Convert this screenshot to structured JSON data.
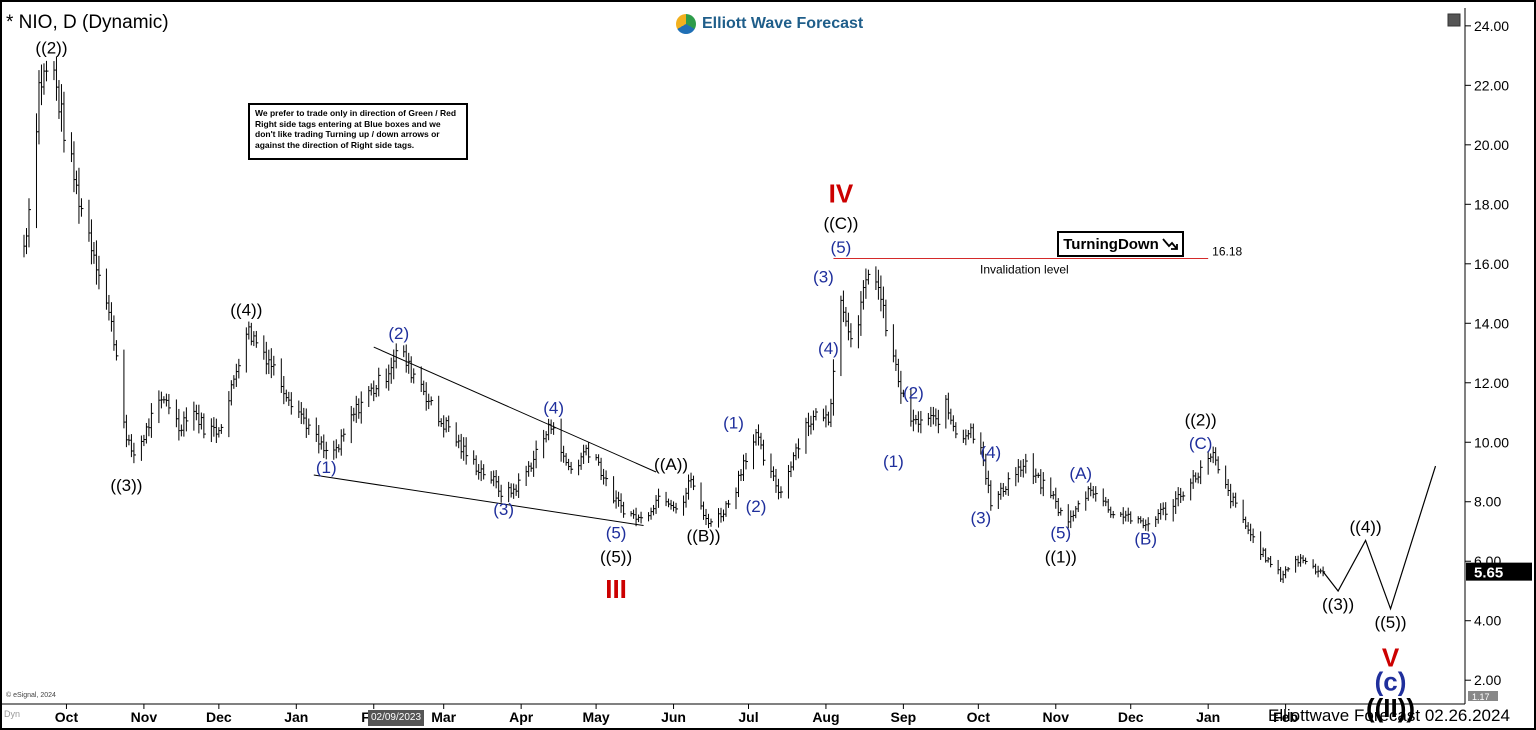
{
  "header": {
    "title": "* NIO, D (Dynamic)",
    "brand": "Elliott Wave Forecast"
  },
  "note": "We prefer to trade only in direction of Green / Red Right side tags entering at Blue boxes and we don't like trading Turning up / down arrows or against the direction of Right side tags.",
  "tag": {
    "label": "TurningDown",
    "icon": "arrow-down-right-icon",
    "level": "16.18",
    "caption": "Invalidation level"
  },
  "footer": {
    "copyright": "© eSignal, 2024",
    "brand_date": "Elliottwave Forecast 02.26.2024",
    "date_flag": "02/09/2023",
    "dyn": "Dyn"
  },
  "chart_data": {
    "type": "line",
    "subtype": "ohlc-daily-with-elliott-wave-labels",
    "y_axis": {
      "position": "right",
      "ylim": [
        1.2,
        24.6
      ],
      "ticks": [
        2,
        4,
        6,
        8,
        10,
        12,
        14,
        16,
        18,
        20,
        22,
        24
      ],
      "tick_labels": [
        "2.00",
        "4.00",
        "6.00",
        "8.00",
        "10.00",
        "12.00",
        "14.00",
        "16.00",
        "18.00",
        "20.00",
        "22.00",
        "24.00"
      ],
      "last_price_label": "5.65",
      "last_price": 5.65,
      "bottom_label": "1.17"
    },
    "x_axis": {
      "months": [
        "Oct",
        "Nov",
        "Dec",
        "Jan",
        "Feb",
        "Mar",
        "Apr",
        "May",
        "Jun",
        "Jul",
        "Aug",
        "Sep",
        "Oct",
        "Nov",
        "Dec",
        "Jan",
        "Feb"
      ],
      "month_start_dates": [
        "2022-10-01",
        "2022-11-01",
        "2022-12-01",
        "2023-01-01",
        "2023-02-01",
        "2023-03-01",
        "2023-04-01",
        "2023-05-01",
        "2023-06-01",
        "2023-07-01",
        "2023-08-01",
        "2023-09-01",
        "2023-10-01",
        "2023-11-01",
        "2023-12-01",
        "2024-01-01",
        "2024-02-01"
      ]
    },
    "grid": false,
    "series": [
      {
        "type": "price",
        "x": [
          "2022-09-14",
          "2022-09-17",
          "2022-09-20",
          "2022-09-25",
          "2022-09-30",
          "2022-10-05",
          "2022-10-10",
          "2022-10-15",
          "2022-10-20",
          "2022-10-23",
          "2022-10-25",
          "2022-10-28",
          "2022-11-01",
          "2022-11-05",
          "2022-11-10",
          "2022-11-15",
          "2022-11-20",
          "2022-11-25",
          "2022-11-30",
          "2022-12-04",
          "2022-12-08",
          "2022-12-12",
          "2022-12-16",
          "2022-12-21",
          "2022-12-26",
          "2022-12-31",
          "2023-01-04",
          "2023-01-08",
          "2023-01-13",
          "2023-01-18",
          "2023-01-23",
          "2023-01-28",
          "2023-02-01",
          "2023-02-06",
          "2023-02-11",
          "2023-02-15",
          "2023-02-20",
          "2023-02-26",
          "2023-03-03",
          "2023-03-08",
          "2023-03-14",
          "2023-03-20",
          "2023-03-25",
          "2023-03-29",
          "2023-04-01",
          "2023-04-05",
          "2023-04-09",
          "2023-04-14",
          "2023-04-18",
          "2023-04-22",
          "2023-04-27",
          "2023-05-01",
          "2023-05-05",
          "2023-05-09",
          "2023-05-14",
          "2023-05-19",
          "2023-05-23",
          "2023-05-27",
          "2023-05-31",
          "2023-06-04",
          "2023-06-08",
          "2023-06-13",
          "2023-06-17",
          "2023-06-20",
          "2023-06-25",
          "2023-06-29",
          "2023-07-04",
          "2023-07-09",
          "2023-07-14",
          "2023-07-19",
          "2023-07-24",
          "2023-07-27",
          "2023-07-31",
          "2023-08-02",
          "2023-08-04",
          "2023-08-06",
          "2023-08-07",
          "2023-08-09",
          "2023-08-12",
          "2023-08-16",
          "2023-08-20",
          "2023-08-24",
          "2023-08-28",
          "2023-09-01",
          "2023-09-05",
          "2023-09-10",
          "2023-09-14",
          "2023-09-18",
          "2023-09-23",
          "2023-09-28",
          "2023-10-02",
          "2023-10-06",
          "2023-10-10",
          "2023-10-15",
          "2023-10-20",
          "2023-10-25",
          "2023-10-30",
          "2023-11-03",
          "2023-11-07",
          "2023-11-11",
          "2023-11-15",
          "2023-11-20",
          "2023-11-25",
          "2023-11-29",
          "2023-12-03",
          "2023-12-07",
          "2023-12-12",
          "2023-12-17",
          "2023-12-21",
          "2023-12-25",
          "2023-12-29",
          "2024-01-03",
          "2024-01-07",
          "2024-01-11",
          "2024-01-16",
          "2024-01-20",
          "2024-01-25",
          "2024-01-30",
          "2024-02-03",
          "2024-02-08",
          "2024-02-12",
          "2024-02-16"
        ],
        "values": [
          16.6,
          18.5,
          22.0,
          22.8,
          20.5,
          18.5,
          17.0,
          15.5,
          13.5,
          11.8,
          10.0,
          9.6,
          10.2,
          11.0,
          11.5,
          10.5,
          11.2,
          10.5,
          10.4,
          11.0,
          12.5,
          13.8,
          13.4,
          12.8,
          12.0,
          11.3,
          10.8,
          10.2,
          9.6,
          9.8,
          10.8,
          11.5,
          11.8,
          12.3,
          13.2,
          12.5,
          12.0,
          10.8,
          10.5,
          9.8,
          9.2,
          8.8,
          8.2,
          8.4,
          8.7,
          9.3,
          10.0,
          10.7,
          9.4,
          9.0,
          9.8,
          9.5,
          8.6,
          8.0,
          7.6,
          7.4,
          7.8,
          8.3,
          8.0,
          7.8,
          8.8,
          7.5,
          7.3,
          7.6,
          8.2,
          9.4,
          10.2,
          9.0,
          8.3,
          9.6,
          10.6,
          10.8,
          11.0,
          10.6,
          12.5,
          14.3,
          15.1,
          14.0,
          13.6,
          14.9,
          16.1,
          14.3,
          12.8,
          11.4,
          10.6,
          10.8,
          10.7,
          11.2,
          10.2,
          10.4,
          10.0,
          7.9,
          8.3,
          9.0,
          9.2,
          8.7,
          8.3,
          7.6,
          7.4,
          8.0,
          8.5,
          8.0,
          7.5,
          7.6,
          7.3,
          7.2,
          7.6,
          7.8,
          8.3,
          8.6,
          9.1,
          9.5,
          8.6,
          8.0,
          7.2,
          6.6,
          6.0,
          5.5,
          5.9,
          6.1,
          5.8,
          5.65
        ]
      },
      {
        "type": "projection",
        "x": [
          "2024-02-16",
          "2024-02-22",
          "2024-03-04",
          "2024-03-14",
          "2024-04-01"
        ],
        "values": [
          5.65,
          5.0,
          6.7,
          4.4,
          9.2
        ]
      }
    ],
    "trendlines": [
      {
        "x": [
          "2023-02-01",
          "2023-05-25"
        ],
        "values": [
          13.2,
          9.0
        ]
      },
      {
        "x": [
          "2023-01-08",
          "2023-05-20"
        ],
        "values": [
          8.9,
          7.2
        ]
      }
    ],
    "invalidation_line": {
      "x": [
        "2023-08-04",
        "2024-01-01"
      ],
      "value": 16.18
    },
    "wave_labels": [
      {
        "text": "((2))",
        "x": "2022-09-25",
        "y": 22.8,
        "pos": "above",
        "color": "#000000"
      },
      {
        "text": "((3))",
        "x": "2022-10-25",
        "y": 9.0,
        "pos": "below",
        "color": "#000000"
      },
      {
        "text": "((4))",
        "x": "2022-12-12",
        "y": 14.0,
        "pos": "above",
        "color": "#000000"
      },
      {
        "text": "(1)",
        "x": "2023-01-13",
        "y": 9.6,
        "pos": "below",
        "color": "#1f2f9c"
      },
      {
        "text": "(2)",
        "x": "2023-02-11",
        "y": 13.2,
        "pos": "above",
        "color": "#1f2f9c"
      },
      {
        "text": "(3)",
        "x": "2023-03-25",
        "y": 8.2,
        "pos": "below",
        "color": "#1f2f9c"
      },
      {
        "text": "(4)",
        "x": "2023-04-14",
        "y": 10.7,
        "pos": "above",
        "color": "#1f2f9c"
      },
      {
        "text": "(5)",
        "x": "2023-05-09",
        "y": 7.4,
        "pos": "below",
        "color": "#1f2f9c"
      },
      {
        "text": "((5))",
        "x": "2023-05-09",
        "y": 6.6,
        "pos": "below",
        "color": "#000000"
      },
      {
        "text": "III",
        "x": "2023-05-09",
        "y": 5.7,
        "pos": "below",
        "color": "#cc0000",
        "size": "large"
      },
      {
        "text": "((A))",
        "x": "2023-05-31",
        "y": 8.8,
        "pos": "above",
        "color": "#000000"
      },
      {
        "text": "((B))",
        "x": "2023-06-13",
        "y": 7.3,
        "pos": "below",
        "color": "#000000"
      },
      {
        "text": "(1)",
        "x": "2023-06-25",
        "y": 10.2,
        "pos": "above",
        "color": "#1f2f9c"
      },
      {
        "text": "(2)",
        "x": "2023-07-04",
        "y": 8.3,
        "pos": "below",
        "color": "#1f2f9c"
      },
      {
        "text": "(3)",
        "x": "2023-07-31",
        "y": 15.1,
        "pos": "above",
        "color": "#1f2f9c"
      },
      {
        "text": "(4)",
        "x": "2023-08-02",
        "y": 13.6,
        "pos": "below",
        "color": "#1f2f9c"
      },
      {
        "text": "(5)",
        "x": "2023-08-07",
        "y": 16.1,
        "pos": "above",
        "color": "#1f2f9c"
      },
      {
        "text": "((C))",
        "x": "2023-08-07",
        "y": 16.9,
        "pos": "above",
        "color": "#000000"
      },
      {
        "text": "IV",
        "x": "2023-08-07",
        "y": 17.8,
        "pos": "above",
        "color": "#cc0000",
        "size": "large"
      },
      {
        "text": "(1)",
        "x": "2023-08-28",
        "y": 9.8,
        "pos": "below",
        "color": "#1f2f9c"
      },
      {
        "text": "(2)",
        "x": "2023-09-05",
        "y": 11.2,
        "pos": "above",
        "color": "#1f2f9c"
      },
      {
        "text": "(3)",
        "x": "2023-10-02",
        "y": 7.9,
        "pos": "below",
        "color": "#1f2f9c"
      },
      {
        "text": "(4)",
        "x": "2023-10-06",
        "y": 9.2,
        "pos": "above",
        "color": "#1f2f9c"
      },
      {
        "text": "(5)",
        "x": "2023-11-03",
        "y": 7.4,
        "pos": "below",
        "color": "#1f2f9c"
      },
      {
        "text": "((1))",
        "x": "2023-11-03",
        "y": 6.6,
        "pos": "below",
        "color": "#000000"
      },
      {
        "text": "(A)",
        "x": "2023-11-11",
        "y": 8.5,
        "pos": "above",
        "color": "#1f2f9c"
      },
      {
        "text": "(B)",
        "x": "2023-12-07",
        "y": 7.2,
        "pos": "below",
        "color": "#1f2f9c"
      },
      {
        "text": "(C)",
        "x": "2023-12-29",
        "y": 9.5,
        "pos": "above",
        "color": "#1f2f9c"
      },
      {
        "text": "((2))",
        "x": "2023-12-29",
        "y": 10.3,
        "pos": "above",
        "color": "#000000"
      },
      {
        "text": "((3))",
        "x": "2024-02-22",
        "y": 5.0,
        "pos": "below",
        "color": "#000000"
      },
      {
        "text": "((4))",
        "x": "2024-03-04",
        "y": 6.7,
        "pos": "above",
        "color": "#000000"
      },
      {
        "text": "((5))",
        "x": "2024-03-14",
        "y": 4.4,
        "pos": "below",
        "color": "#000000"
      },
      {
        "text": "V",
        "x": "2024-03-14",
        "y": 3.4,
        "pos": "below",
        "color": "#cc0000",
        "size": "large"
      },
      {
        "text": "(c)",
        "x": "2024-03-14",
        "y": 2.6,
        "pos": "below",
        "color": "#1f2f9c",
        "size": "large"
      },
      {
        "text": "((II))",
        "x": "2024-03-14",
        "y": 1.7,
        "pos": "below",
        "color": "#000000",
        "size": "large"
      }
    ],
    "colors": {
      "price": "#000000",
      "invalidation": "#d42a2a",
      "wave_blue": "#1f2f9c",
      "wave_red": "#cc0000",
      "last_price_bg": "#000000"
    }
  }
}
